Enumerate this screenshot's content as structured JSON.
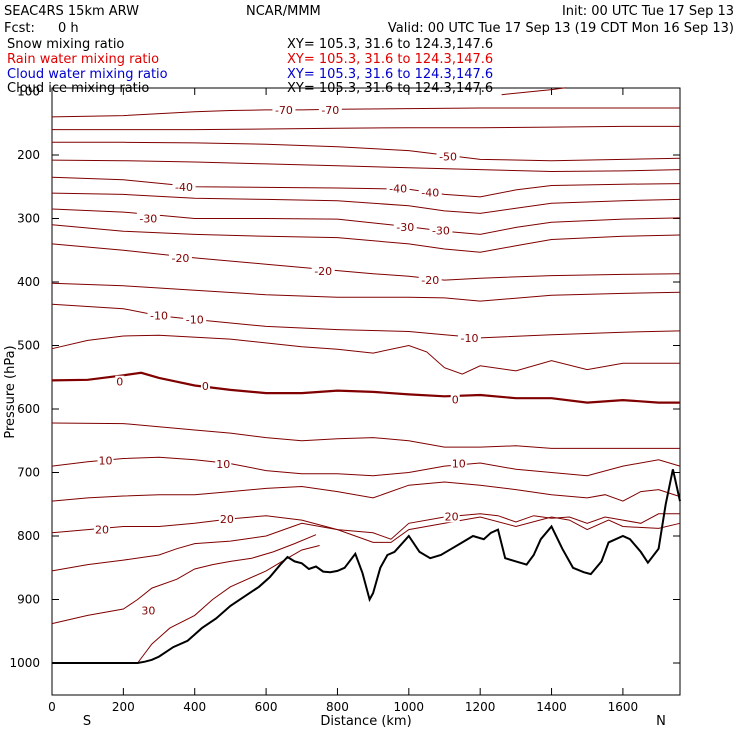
{
  "header": {
    "model": "SEAC4RS 15km ARW",
    "org": "NCAR/MMM",
    "init": "Init: 00 UTC Tue 17 Sep 13",
    "fcst_label": "Fcst:",
    "fcst_value": "0 h",
    "valid": "Valid: 00 UTC Tue 17 Sep 13 (19 CDT Mon 16 Sep 13)"
  },
  "fields": [
    {
      "label": "Snow mixing ratio",
      "xy": "XY= 105.3, 31.6 to 124.3,147.6",
      "color": "#000000"
    },
    {
      "label": "Rain water mixing ratio",
      "xy": "XY= 105.3, 31.6 to 124.3,147.6",
      "color": "#e00000"
    },
    {
      "label": "Cloud water mixing ratio",
      "xy": "XY= 105.3, 31.6 to 124.3,147.6",
      "color": "#0000cc"
    },
    {
      "label": "Cloud ice mixing ratio",
      "xy": "XY= 105.3, 31.6 to 124.3,147.6",
      "color": "#000000"
    }
  ],
  "chart_data": {
    "type": "line",
    "xlabel": "Distance (km)",
    "ylabel": "Pressure (hPa)",
    "xlim": [
      0,
      1760
    ],
    "ylim": [
      1050,
      100
    ],
    "x_ticks": [
      0,
      200,
      400,
      600,
      800,
      1000,
      1200,
      1400,
      1600
    ],
    "y_ticks": [
      200,
      300,
      400,
      500,
      600,
      700,
      800,
      900,
      1000
    ],
    "y_top_tick": "100",
    "endpoint_left": "S",
    "endpoint_right": "N",
    "contour_color": "#800000",
    "terrain_color": "#000000",
    "contour_labels": [
      {
        "text": "-70",
        "x": 650,
        "p": 129
      },
      {
        "text": "-70",
        "x": 780,
        "p": 129
      },
      {
        "text": "-50",
        "x": 1110,
        "p": 202
      },
      {
        "text": "-40",
        "x": 370,
        "p": 250
      },
      {
        "text": "-40",
        "x": 970,
        "p": 253
      },
      {
        "text": "-40",
        "x": 1060,
        "p": 259
      },
      {
        "text": "-30",
        "x": 270,
        "p": 300
      },
      {
        "text": "-30",
        "x": 990,
        "p": 313
      },
      {
        "text": "-30",
        "x": 1090,
        "p": 319
      },
      {
        "text": "-20",
        "x": 360,
        "p": 362
      },
      {
        "text": "-20",
        "x": 760,
        "p": 383
      },
      {
        "text": "-20",
        "x": 1060,
        "p": 397
      },
      {
        "text": "-10",
        "x": 300,
        "p": 453
      },
      {
        "text": "-10",
        "x": 400,
        "p": 459
      },
      {
        "text": "-10",
        "x": 1170,
        "p": 488
      },
      {
        "text": "0",
        "x": 190,
        "p": 557
      },
      {
        "text": "0",
        "x": 430,
        "p": 564
      },
      {
        "text": "0",
        "x": 1130,
        "p": 585
      },
      {
        "text": "10",
        "x": 150,
        "p": 681
      },
      {
        "text": "10",
        "x": 480,
        "p": 687
      },
      {
        "text": "10",
        "x": 1140,
        "p": 686
      },
      {
        "text": "20",
        "x": 140,
        "p": 790
      },
      {
        "text": "20",
        "x": 490,
        "p": 773
      },
      {
        "text": "20",
        "x": 1120,
        "p": 769
      },
      {
        "text": "30",
        "x": 270,
        "p": 917
      }
    ],
    "series": [
      {
        "level": -70,
        "x": [
          1260,
          1330,
          1400,
          1440
        ],
        "p": [
          105,
          101,
          97,
          94
        ]
      },
      {
        "level": -70,
        "x": [
          0,
          200,
          400,
          500,
          600,
          700,
          800,
          1000,
          1200,
          1300,
          1400,
          1600,
          1760
        ],
        "p": [
          140,
          138,
          132,
          130,
          129,
          129,
          128,
          127,
          126,
          126,
          126,
          126,
          126
        ]
      },
      {
        "level": -60,
        "x": [
          0,
          200,
          400,
          600,
          800,
          1000,
          1200,
          1400,
          1600,
          1760
        ],
        "p": [
          160,
          160,
          160,
          159,
          158,
          157,
          157,
          156,
          155,
          155
        ]
      },
      {
        "level": -50,
        "x": [
          0,
          200,
          400,
          600,
          800,
          1000,
          1100,
          1200,
          1400,
          1600,
          1760
        ],
        "p": [
          180,
          180,
          181,
          183,
          187,
          193,
          200,
          207,
          209,
          207,
          205
        ]
      },
      {
        "level": -45,
        "x": [
          0,
          200,
          400,
          600,
          800,
          1000,
          1200,
          1400,
          1600,
          1760
        ],
        "p": [
          208,
          209,
          211,
          214,
          217,
          220,
          223,
          226,
          225,
          223
        ]
      },
      {
        "level": -40,
        "x": [
          0,
          200,
          400,
          600,
          800,
          1000,
          1100,
          1200,
          1300,
          1400,
          1600,
          1760
        ],
        "p": [
          235,
          239,
          250,
          251,
          252,
          254,
          262,
          266,
          255,
          248,
          246,
          245
        ]
      },
      {
        "level": -35,
        "x": [
          0,
          200,
          400,
          600,
          800,
          1000,
          1100,
          1200,
          1300,
          1400,
          1600,
          1760
        ],
        "p": [
          260,
          262,
          268,
          270,
          272,
          280,
          288,
          292,
          284,
          276,
          272,
          270
        ]
      },
      {
        "level": -30,
        "x": [
          0,
          200,
          400,
          600,
          800,
          1000,
          1100,
          1200,
          1300,
          1400,
          1600,
          1760
        ],
        "p": [
          285,
          290,
          300,
          300,
          301,
          313,
          320,
          325,
          314,
          306,
          301,
          299
        ]
      },
      {
        "level": -25,
        "x": [
          0,
          200,
          400,
          600,
          800,
          1000,
          1100,
          1200,
          1300,
          1400,
          1600,
          1760
        ],
        "p": [
          310,
          320,
          325,
          328,
          330,
          340,
          348,
          353,
          343,
          333,
          328,
          326
        ]
      },
      {
        "level": -20,
        "x": [
          0,
          200,
          400,
          600,
          800,
          900,
          1000,
          1100,
          1200,
          1400,
          1600,
          1760
        ],
        "p": [
          340,
          350,
          362,
          372,
          382,
          387,
          391,
          397,
          394,
          390,
          388,
          387
        ]
      },
      {
        "level": -15,
        "x": [
          0,
          200,
          400,
          600,
          800,
          1000,
          1100,
          1200,
          1400,
          1600,
          1760
        ],
        "p": [
          402,
          406,
          413,
          420,
          424,
          424,
          425,
          430,
          421,
          418,
          416
        ]
      },
      {
        "level": -10,
        "x": [
          0,
          200,
          300,
          400,
          600,
          800,
          1000,
          1100,
          1200,
          1400,
          1600,
          1760
        ],
        "p": [
          435,
          442,
          453,
          459,
          470,
          475,
          478,
          483,
          488,
          483,
          479,
          477
        ]
      },
      {
        "level": -5,
        "x": [
          0,
          100,
          200,
          300,
          500,
          700,
          800,
          900,
          1000,
          1050,
          1100,
          1150,
          1200,
          1300,
          1400,
          1500,
          1600,
          1760
        ],
        "p": [
          505,
          492,
          485,
          484,
          490,
          502,
          506,
          512,
          500,
          510,
          535,
          545,
          532,
          540,
          524,
          538,
          528,
          528
        ]
      },
      {
        "level": 0,
        "x": [
          0,
          100,
          200,
          250,
          300,
          400,
          500,
          600,
          700,
          800,
          900,
          1000,
          1100,
          1200,
          1300,
          1400,
          1500,
          1600,
          1700,
          1760
        ],
        "p": [
          555,
          554,
          547,
          543,
          551,
          563,
          570,
          575,
          575,
          571,
          573,
          577,
          580,
          578,
          583,
          583,
          590,
          586,
          590,
          590
        ]
      },
      {
        "level": 5,
        "x": [
          0,
          200,
          400,
          500,
          600,
          700,
          800,
          900,
          1000,
          1100,
          1200,
          1300,
          1400,
          1500,
          1600,
          1760
        ],
        "p": [
          622,
          623,
          633,
          638,
          645,
          650,
          647,
          645,
          650,
          660,
          660,
          658,
          662,
          662,
          662,
          662
        ]
      },
      {
        "level": 10,
        "x": [
          0,
          100,
          200,
          300,
          400,
          500,
          600,
          700,
          800,
          900,
          1000,
          1100,
          1200,
          1300,
          1400,
          1500,
          1600,
          1700,
          1760
        ],
        "p": [
          690,
          683,
          678,
          676,
          680,
          686,
          697,
          702,
          702,
          705,
          700,
          690,
          685,
          695,
          700,
          705,
          690,
          680,
          690
        ]
      },
      {
        "level": 15,
        "x": [
          0,
          100,
          200,
          300,
          400,
          500,
          600,
          700,
          800,
          900,
          1000,
          1100,
          1200,
          1300,
          1400,
          1500,
          1550,
          1600,
          1650,
          1700,
          1760
        ],
        "p": [
          745,
          740,
          737,
          735,
          735,
          730,
          725,
          722,
          730,
          740,
          720,
          715,
          720,
          727,
          735,
          740,
          735,
          745,
          730,
          727,
          738
        ]
      },
      {
        "level": 20,
        "x": [
          0,
          100,
          200,
          300,
          400,
          500,
          600,
          700,
          800,
          900,
          950,
          1000,
          1100,
          1200,
          1250,
          1300,
          1350,
          1400,
          1450,
          1500,
          1550,
          1600,
          1650,
          1700,
          1760
        ],
        "p": [
          795,
          790,
          785,
          785,
          780,
          773,
          768,
          775,
          790,
          795,
          805,
          780,
          770,
          765,
          768,
          778,
          768,
          772,
          770,
          780,
          770,
          775,
          780,
          765,
          765
        ]
      },
      {
        "level": 25,
        "x": [
          0,
          100,
          200,
          300,
          350,
          400,
          500,
          600,
          650,
          700,
          800,
          850,
          900,
          950,
          1000,
          1100,
          1200,
          1300,
          1400,
          1450,
          1500,
          1560,
          1600,
          1700,
          1760
        ],
        "p": [
          855,
          845,
          838,
          830,
          820,
          812,
          808,
          800,
          790,
          780,
          790,
          800,
          810,
          810,
          790,
          780,
          770,
          785,
          770,
          775,
          790,
          775,
          785,
          788,
          780
        ]
      },
      {
        "level": 30,
        "x": [
          0,
          100,
          200,
          240,
          280,
          350,
          400,
          450,
          500,
          560,
          620,
          680,
          740
        ],
        "p": [
          938,
          925,
          915,
          900,
          882,
          868,
          852,
          845,
          840,
          835,
          825,
          812,
          798
        ]
      },
      {
        "level": 35,
        "x": [
          240,
          280,
          330,
          400,
          450,
          500,
          600,
          660,
          700,
          750
        ],
        "p": [
          1000,
          970,
          945,
          925,
          900,
          880,
          855,
          835,
          822,
          815
        ]
      }
    ],
    "terrain": {
      "x": [
        0,
        100,
        200,
        240,
        260,
        280,
        300,
        340,
        380,
        420,
        460,
        500,
        540,
        580,
        610,
        640,
        660,
        680,
        700,
        720,
        740,
        760,
        780,
        800,
        820,
        850,
        870,
        890,
        900,
        920,
        940,
        960,
        1000,
        1030,
        1060,
        1090,
        1120,
        1150,
        1180,
        1210,
        1230,
        1250,
        1270,
        1300,
        1330,
        1350,
        1370,
        1400,
        1430,
        1460,
        1490,
        1510,
        1540,
        1560,
        1600,
        1620,
        1650,
        1670,
        1700,
        1720,
        1740,
        1760
      ],
      "p": [
        1000,
        1000,
        1000,
        1000,
        998,
        995,
        990,
        975,
        965,
        945,
        930,
        910,
        895,
        880,
        865,
        845,
        833,
        840,
        843,
        852,
        848,
        856,
        857,
        855,
        850,
        828,
        858,
        900,
        890,
        850,
        830,
        825,
        800,
        825,
        835,
        830,
        820,
        810,
        800,
        805,
        795,
        790,
        835,
        840,
        845,
        830,
        805,
        785,
        820,
        850,
        857,
        860,
        840,
        810,
        800,
        805,
        825,
        842,
        820,
        750,
        695,
        745
      ]
    }
  }
}
